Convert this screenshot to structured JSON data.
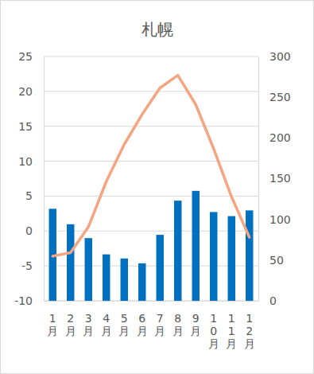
{
  "chart_data": {
    "type": "bar",
    "title": "札幌",
    "categories": [
      "1月",
      "2月",
      "3月",
      "4月",
      "5月",
      "6月",
      "7月",
      "8月",
      "9月",
      "10月",
      "11月",
      "12月"
    ],
    "series": [
      {
        "type": "bar",
        "color": "#0070c0",
        "axis": "y2",
        "values": [
          113,
          94,
          77,
          57,
          52,
          46,
          81,
          123,
          135,
          109,
          104,
          111
        ]
      },
      {
        "type": "line",
        "color": "#f4a582",
        "values": [
          -3.6,
          -3.1,
          0.6,
          7.1,
          12.4,
          16.7,
          20.5,
          22.3,
          18.1,
          11.8,
          4.9,
          -0.9
        ]
      }
    ],
    "ylim": [
      -10,
      25
    ],
    "yticks": [
      -10,
      -5,
      0,
      5,
      10,
      15,
      20,
      25
    ],
    "y2lim": [
      0,
      300
    ],
    "y2ticks": [
      0,
      50,
      100,
      150,
      200,
      250,
      300
    ],
    "grid": true
  }
}
